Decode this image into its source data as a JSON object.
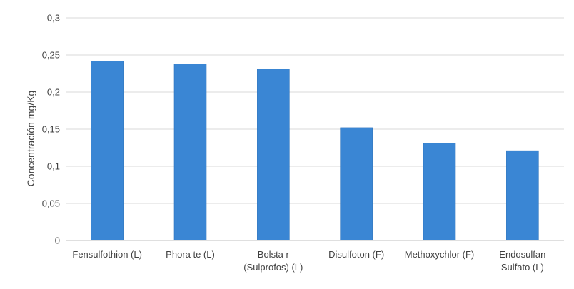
{
  "chart_data": {
    "type": "bar",
    "title": "",
    "xlabel": "",
    "ylabel": "Concentración mg/Kg",
    "categories": [
      [
        "Fensulfothion (L)"
      ],
      [
        "Phora te (L)"
      ],
      [
        "Bolsta r",
        "(Sulprofos) (L)"
      ],
      [
        "Disulfoton (F)"
      ],
      [
        "Methoxychlor (F)"
      ],
      [
        "Endosulfan",
        "Sulfato (L)"
      ]
    ],
    "values": [
      0.242,
      0.238,
      0.231,
      0.152,
      0.131,
      0.121
    ],
    "ylim": [
      0,
      0.3
    ],
    "yticks": [
      "0",
      "0,05",
      "0,1",
      "0,15",
      "0,2",
      "0,25",
      "0,3"
    ],
    "grid": true,
    "legend": "none",
    "colors": {
      "bar": "#3a86d4",
      "bar_edge": "#2f74bd",
      "grid": "#d9d9d9",
      "axis": "#bfbfbf"
    }
  }
}
